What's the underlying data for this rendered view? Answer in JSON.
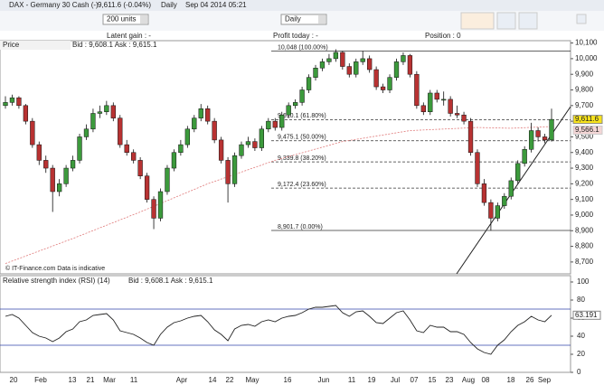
{
  "header": {
    "title": "DAX - Germany 30 Cash (-)",
    "quote": "9,611.6 (-0.04%)",
    "period": "Daily",
    "timestamp": "Sep 04 2014 05:21"
  },
  "toolbar": {
    "units": "200 units",
    "timeframe": "Daily"
  },
  "account": {
    "latent_gain": "Latent gain : -",
    "profit_today": "Profit today : -",
    "position": "Position : 0"
  },
  "x_axis": {
    "labels": [
      "20",
      "Feb",
      "13",
      "21",
      "Mar",
      "11",
      "Apr",
      "14",
      "22",
      "May",
      "16",
      "Jun",
      "11",
      "19",
      "Jul",
      "07",
      "15",
      "23",
      "Aug",
      "08",
      "18",
      "26",
      "Sep"
    ]
  },
  "chart_data": [
    {
      "type": "candlestick",
      "title": "Price",
      "quote": "Bid : 9,608.1 Ask : 9,615.1",
      "watermark": "© IT-Finance.com  Data is indicative",
      "up_color": "#3c9a3c",
      "down_color": "#b83232",
      "ohlc": [
        [
          9700,
          9760,
          9680,
          9720
        ],
        [
          9720,
          9770,
          9700,
          9750
        ],
        [
          9750,
          9760,
          9680,
          9700
        ],
        [
          9700,
          9710,
          9580,
          9600
        ],
        [
          9600,
          9620,
          9430,
          9450
        ],
        [
          9450,
          9470,
          9320,
          9350
        ],
        [
          9350,
          9380,
          9270,
          9300
        ],
        [
          9300,
          9320,
          9020,
          9150
        ],
        [
          9150,
          9230,
          9120,
          9200
        ],
        [
          9200,
          9320,
          9180,
          9300
        ],
        [
          9300,
          9380,
          9280,
          9350
        ],
        [
          9350,
          9520,
          9330,
          9500
        ],
        [
          9500,
          9580,
          9480,
          9550
        ],
        [
          9550,
          9680,
          9530,
          9650
        ],
        [
          9650,
          9700,
          9620,
          9660
        ],
        [
          9660,
          9730,
          9640,
          9700
        ],
        [
          9700,
          9720,
          9600,
          9620
        ],
        [
          9620,
          9640,
          9430,
          9450
        ],
        [
          9450,
          9480,
          9380,
          9400
        ],
        [
          9400,
          9420,
          9330,
          9350
        ],
        [
          9350,
          9370,
          9230,
          9250
        ],
        [
          9250,
          9270,
          9080,
          9100
        ],
        [
          9100,
          9120,
          8910,
          8980
        ],
        [
          8980,
          9170,
          8960,
          9150
        ],
        [
          9150,
          9320,
          9130,
          9300
        ],
        [
          9300,
          9420,
          9280,
          9400
        ],
        [
          9400,
          9480,
          9380,
          9450
        ],
        [
          9450,
          9570,
          9430,
          9550
        ],
        [
          9550,
          9640,
          9530,
          9620
        ],
        [
          9620,
          9710,
          9600,
          9680
        ],
        [
          9680,
          9700,
          9580,
          9600
        ],
        [
          9600,
          9620,
          9460,
          9480
        ],
        [
          9480,
          9500,
          9330,
          9350
        ],
        [
          9350,
          9370,
          9080,
          9200
        ],
        [
          9200,
          9400,
          9180,
          9380
        ],
        [
          9380,
          9470,
          9360,
          9450
        ],
        [
          9450,
          9500,
          9430,
          9470
        ],
        [
          9470,
          9490,
          9410,
          9430
        ],
        [
          9430,
          9570,
          9410,
          9550
        ],
        [
          9550,
          9620,
          9530,
          9600
        ],
        [
          9600,
          9620,
          9540,
          9560
        ],
        [
          9560,
          9660,
          9540,
          9640
        ],
        [
          9640,
          9720,
          9620,
          9700
        ],
        [
          9700,
          9740,
          9680,
          9720
        ],
        [
          9720,
          9820,
          9700,
          9800
        ],
        [
          9800,
          9900,
          9780,
          9880
        ],
        [
          9880,
          9960,
          9860,
          9940
        ],
        [
          9940,
          10000,
          9920,
          9980
        ],
        [
          9980,
          10030,
          9960,
          10000
        ],
        [
          10000,
          10060,
          9980,
          10040
        ],
        [
          10040,
          10050,
          9930,
          9950
        ],
        [
          9950,
          9970,
          9880,
          9900
        ],
        [
          9900,
          10000,
          9880,
          9980
        ],
        [
          9980,
          10050,
          9960,
          10000
        ],
        [
          10000,
          10020,
          9910,
          9930
        ],
        [
          9930,
          9950,
          9800,
          9820
        ],
        [
          9820,
          9840,
          9780,
          9800
        ],
        [
          9800,
          9900,
          9780,
          9880
        ],
        [
          9880,
          10000,
          9860,
          9980
        ],
        [
          9980,
          10040,
          9960,
          10020
        ],
        [
          10020,
          10030,
          9880,
          9900
        ],
        [
          9900,
          9920,
          9680,
          9700
        ],
        [
          9700,
          9720,
          9640,
          9660
        ],
        [
          9660,
          9800,
          9640,
          9780
        ],
        [
          9780,
          9800,
          9720,
          9740
        ],
        [
          9740,
          9790,
          9700,
          9740
        ],
        [
          9740,
          9760,
          9630,
          9650
        ],
        [
          9650,
          9700,
          9620,
          9640
        ],
        [
          9640,
          9660,
          9580,
          9600
        ],
        [
          9600,
          9620,
          9380,
          9400
        ],
        [
          9400,
          9420,
          9180,
          9200
        ],
        [
          9200,
          9230,
          9060,
          9080
        ],
        [
          9080,
          9100,
          8900,
          8980
        ],
        [
          8980,
          9080,
          8960,
          9060
        ],
        [
          9060,
          9140,
          9040,
          9120
        ],
        [
          9120,
          9240,
          9100,
          9220
        ],
        [
          9220,
          9350,
          9200,
          9330
        ],
        [
          9330,
          9440,
          9310,
          9420
        ],
        [
          9420,
          9590,
          9400,
          9540
        ],
        [
          9540,
          9560,
          9470,
          9500
        ],
        [
          9500,
          9520,
          9460,
          9480
        ],
        [
          9480,
          9680,
          9470,
          9611.6
        ]
      ],
      "moving_average": {
        "color": "#e07a7a",
        "x": [
          0,
          10,
          20,
          30,
          40,
          50,
          60,
          70,
          75,
          81
        ],
        "values": [
          8690,
          8850,
          9020,
          9200,
          9350,
          9470,
          9540,
          9560,
          9555,
          9566.1
        ]
      },
      "fibonacci": [
        {
          "value": 10048,
          "label": "10,048 (100.00%)"
        },
        {
          "value": 9610.1,
          "label": "9,610.1 (61.80%)"
        },
        {
          "value": 9475.1,
          "label": "9,475.1 (50.00%)"
        },
        {
          "value": 9339.8,
          "label": "9,339.8 (38.20%)"
        },
        {
          "value": 9172.4,
          "label": "9,172.4 (23.60%)"
        },
        {
          "value": 8901.7,
          "label": "8,901.7 (0.00%)"
        }
      ],
      "last_price": {
        "value": 9611.6,
        "label": "9,611.6"
      },
      "ma_last": {
        "value": 9566.1,
        "label": "9,566.1"
      },
      "ylim": [
        8630,
        10115
      ],
      "yticks": [
        {
          "value": 8700,
          "label": "8,700"
        },
        {
          "value": 8800,
          "label": "8,800"
        },
        {
          "value": 8900,
          "label": "8,900"
        },
        {
          "value": 9000,
          "label": "9,000"
        },
        {
          "value": 9100,
          "label": "9,100"
        },
        {
          "value": 9200,
          "label": "9,200"
        },
        {
          "value": 9300,
          "label": "9,300"
        },
        {
          "value": 9400,
          "label": "9,400"
        },
        {
          "value": 9500,
          "label": "9,500"
        },
        {
          "value": 9600,
          "label": "9,600"
        },
        {
          "value": 9700,
          "label": "9,700"
        },
        {
          "value": 9800,
          "label": "9,800"
        },
        {
          "value": 9900,
          "label": "9,900"
        },
        {
          "value": 10000,
          "label": "10,000"
        },
        {
          "value": 10100,
          "label": "10,100"
        }
      ]
    },
    {
      "type": "line",
      "title": "Relative strength index (RSI) (14)",
      "quote": "Bid : 9,608.1 Ask : 9,615.1",
      "color": "#222222",
      "values": [
        62,
        64,
        60,
        52,
        44,
        40,
        38,
        34,
        38,
        45,
        48,
        56,
        58,
        63,
        64,
        65,
        58,
        46,
        44,
        42,
        38,
        33,
        30,
        42,
        50,
        55,
        57,
        60,
        62,
        63,
        56,
        47,
        42,
        35,
        48,
        52,
        53,
        51,
        56,
        58,
        56,
        60,
        62,
        63,
        66,
        70,
        72,
        72,
        73,
        74,
        66,
        62,
        67,
        68,
        62,
        55,
        54,
        60,
        66,
        68,
        58,
        46,
        44,
        52,
        50,
        50,
        45,
        45,
        42,
        33,
        26,
        22,
        20,
        30,
        36,
        45,
        52,
        56,
        62,
        58,
        56,
        63.191
      ],
      "levels": [
        70,
        30
      ],
      "level_color": "#3344aa",
      "last": 63.191,
      "ylim": [
        0,
        100
      ],
      "yticks": [
        0,
        20,
        40,
        60,
        80,
        100
      ]
    }
  ]
}
